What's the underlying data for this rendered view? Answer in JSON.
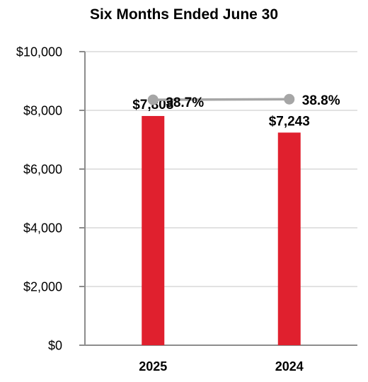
{
  "chart_data": {
    "type": "bar",
    "title": "Six Months Ended June 30",
    "categories": [
      "2025",
      "2024"
    ],
    "series": [
      {
        "type": "bar",
        "values": [
          7808,
          7243
        ],
        "labels": [
          "$7,808",
          "$7,243"
        ]
      },
      {
        "type": "line",
        "values": [
          38.7,
          38.8
        ],
        "labels": [
          "38.7%",
          "38.8%"
        ]
      }
    ],
    "ylim": [
      0,
      10000
    ],
    "yticks": [
      0,
      2000,
      4000,
      6000,
      8000,
      10000
    ],
    "ytick_labels": [
      "$0",
      "$2,000",
      "$4,000",
      "$6,000",
      "$8,000",
      "$10,000"
    ],
    "grid": true,
    "colors": {
      "bar": "#e0202e",
      "line": "#a6a6a6",
      "grid": "#d9d9d9",
      "axis": "#8c8c8c"
    }
  }
}
